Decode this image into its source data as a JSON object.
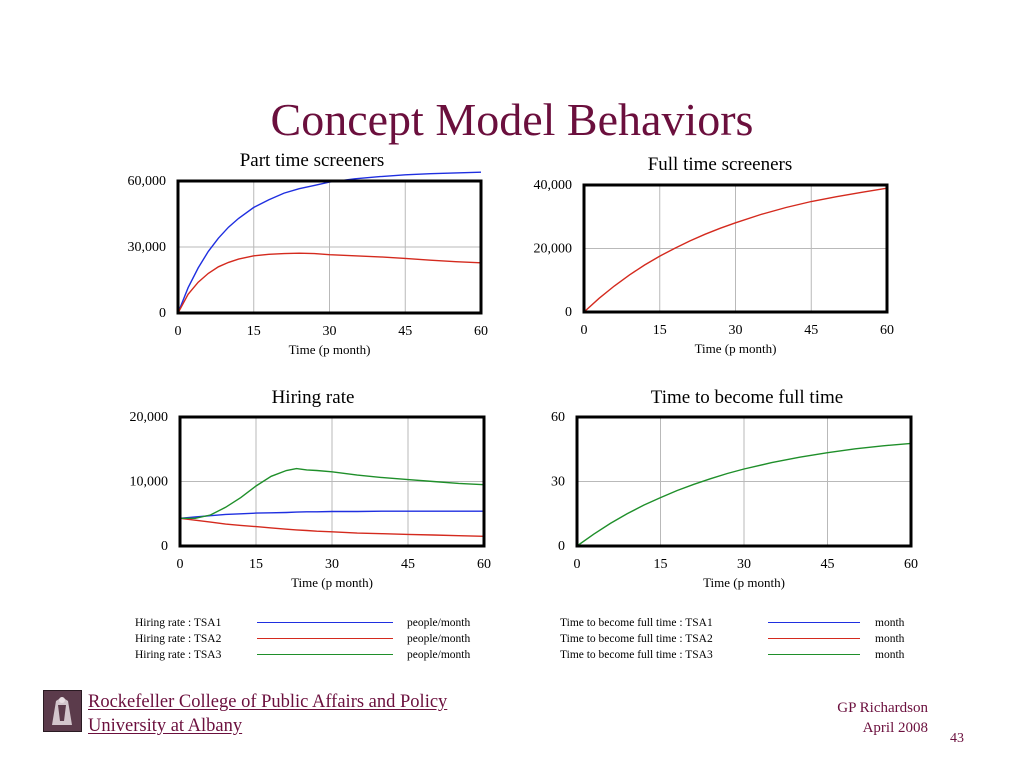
{
  "slide": {
    "title": "Concept Model Behaviors",
    "page_number": "43"
  },
  "footer": {
    "org_line1": "Rockefeller College of Public Affairs and Policy",
    "org_line2": "University at Albany",
    "author": "GP Richardson",
    "date": "April 2008"
  },
  "colors": {
    "title": "#6b0f3d",
    "tsa1": "#1f2fe0",
    "tsa2": "#d42a1e",
    "tsa3": "#1f8f2a"
  },
  "legends": {
    "left": {
      "rows": [
        {
          "label": "Hiring rate : TSA1",
          "unit": "people/month",
          "color": "#1f2fe0"
        },
        {
          "label": "Hiring rate : TSA2",
          "unit": "people/month",
          "color": "#d42a1e"
        },
        {
          "label": "Hiring rate : TSA3",
          "unit": "people/month",
          "color": "#1f8f2a"
        }
      ]
    },
    "right": {
      "rows": [
        {
          "label": "Time to become full time : TSA1",
          "unit": "month",
          "color": "#1f2fe0"
        },
        {
          "label": "Time to become full time : TSA2",
          "unit": "month",
          "color": "#d42a1e"
        },
        {
          "label": "Time to become full time : TSA3",
          "unit": "month",
          "color": "#1f8f2a"
        }
      ]
    }
  },
  "chart_data": [
    {
      "type": "line",
      "title": "Part time screeners",
      "xlabel": "Time (p month)",
      "xlim": [
        0,
        60
      ],
      "xticks": [
        "0",
        "15",
        "30",
        "45",
        "60"
      ],
      "ylim": [
        0,
        60000
      ],
      "yticks": [
        "0",
        "30,000",
        "60,000"
      ],
      "grid": true,
      "x": [
        0,
        2,
        4,
        6,
        8,
        10,
        12,
        15,
        18,
        21,
        24,
        27,
        30,
        35,
        40,
        45,
        50,
        55,
        60
      ],
      "series": [
        {
          "color": "#1f2fe0",
          "values": [
            0,
            11500,
            20500,
            28000,
            34000,
            39000,
            43000,
            48000,
            51500,
            54500,
            56500,
            58000,
            59500,
            61000,
            62000,
            62800,
            63300,
            63700,
            64000
          ]
        },
        {
          "color": "#d42a1e",
          "values": [
            0,
            8500,
            14000,
            18000,
            21000,
            23000,
            24500,
            26000,
            26700,
            27000,
            27200,
            27000,
            26500,
            26000,
            25500,
            24800,
            24000,
            23300,
            22800
          ]
        }
      ]
    },
    {
      "type": "line",
      "title": "Full time screeners",
      "xlabel": "Time (p month)",
      "xlim": [
        0,
        60
      ],
      "xticks": [
        "0",
        "15",
        "30",
        "45",
        "60"
      ],
      "ylim": [
        0,
        40000
      ],
      "yticks": [
        "0",
        "20,000",
        "40,000"
      ],
      "grid": true,
      "x": [
        0,
        3,
        6,
        9,
        12,
        15,
        18,
        21,
        24,
        27,
        30,
        35,
        40,
        45,
        50,
        55,
        60
      ],
      "series": [
        {
          "color": "#d42a1e",
          "values": [
            0,
            4300,
            8200,
            11700,
            14800,
            17600,
            20100,
            22400,
            24500,
            26400,
            28100,
            30700,
            32900,
            34800,
            36300,
            37700,
            39000
          ]
        }
      ]
    },
    {
      "type": "line",
      "title": "Hiring rate",
      "xlabel": "Time (p month)",
      "xlim": [
        0,
        60
      ],
      "xticks": [
        "0",
        "15",
        "30",
        "45",
        "60"
      ],
      "ylim": [
        0,
        20000
      ],
      "yticks": [
        "0",
        "10,000",
        "20,000"
      ],
      "grid": true,
      "x": [
        0,
        3,
        6,
        9,
        12,
        15,
        18,
        21,
        23,
        25,
        27,
        30,
        35,
        40,
        45,
        50,
        55,
        60
      ],
      "series": [
        {
          "color": "#1f2fe0",
          "values": [
            4300,
            4500,
            4700,
            4900,
            5000,
            5100,
            5150,
            5200,
            5250,
            5300,
            5300,
            5350,
            5350,
            5400,
            5400,
            5400,
            5400,
            5400
          ]
        },
        {
          "color": "#d42a1e",
          "values": [
            4300,
            4000,
            3700,
            3400,
            3200,
            3000,
            2800,
            2600,
            2500,
            2400,
            2300,
            2200,
            2000,
            1900,
            1800,
            1700,
            1600,
            1500
          ]
        },
        {
          "color": "#1f8f2a",
          "values": [
            4300,
            4300,
            4800,
            6000,
            7500,
            9300,
            10800,
            11700,
            12000,
            11800,
            11700,
            11500,
            11000,
            10600,
            10300,
            10000,
            9700,
            9500
          ]
        }
      ]
    },
    {
      "type": "line",
      "title": "Time to become full time",
      "xlabel": "Time (p month)",
      "xlim": [
        0,
        60
      ],
      "xticks": [
        "0",
        "15",
        "30",
        "45",
        "60"
      ],
      "ylim": [
        0,
        60
      ],
      "yticks": [
        "0",
        "30",
        "60"
      ],
      "grid": true,
      "x": [
        0,
        3,
        6,
        9,
        12,
        15,
        18,
        21,
        24,
        27,
        30,
        35,
        40,
        45,
        50,
        55,
        60
      ],
      "series": [
        {
          "color": "#1f8f2a",
          "values": [
            0,
            5.5,
            10.5,
            15,
            19,
            22.5,
            25.8,
            28.7,
            31.3,
            33.7,
            35.8,
            38.8,
            41.3,
            43.4,
            45.2,
            46.6,
            47.7
          ]
        }
      ]
    }
  ]
}
